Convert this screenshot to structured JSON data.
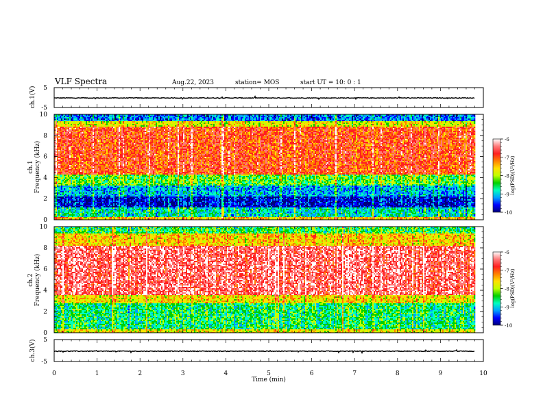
{
  "header": {
    "title": "VLF Spectra",
    "date": "Aug.22, 2023",
    "station": "station= MOS",
    "start": "start  UT =   10: 0  : 1"
  },
  "chart_data": [
    {
      "type": "line",
      "panel": "ch1-voltage",
      "ylabel": "ch.1(V)",
      "ylim": [
        -5,
        5
      ],
      "yticks": [
        "5",
        "-5"
      ],
      "series": [
        {
          "values": [
            -0.2,
            -0.2,
            -0.2,
            -0.2,
            -0.2,
            -0.2,
            -0.2,
            -0.2,
            -0.2,
            -0.2,
            -0.2
          ]
        }
      ],
      "x": [
        0,
        1,
        2,
        3,
        4,
        5,
        6,
        7,
        8,
        9,
        9.8
      ]
    },
    {
      "type": "heatmap",
      "panel": "ch1-spectrogram",
      "ylabel": "Frequency (kHz)",
      "channel_label": "ch.1",
      "ylim": [
        0,
        10
      ],
      "yticks": [
        "0",
        "2",
        "4",
        "6",
        "8",
        "10"
      ],
      "xlim": [
        0,
        9.8
      ],
      "bands": [
        {
          "from": 0,
          "to": 0.3,
          "level": -7.5
        },
        {
          "from": 0.3,
          "to": 1.2,
          "level": -8.8
        },
        {
          "from": 1.2,
          "to": 2.2,
          "level": -9.7
        },
        {
          "from": 2.2,
          "to": 3.2,
          "level": -9.1
        },
        {
          "from": 3.2,
          "to": 4.3,
          "level": -8.3
        },
        {
          "from": 4.3,
          "to": 8.8,
          "level": -6.9
        },
        {
          "from": 8.8,
          "to": 9.4,
          "level": -7.8
        },
        {
          "from": 9.4,
          "to": 10,
          "level": -9.3
        }
      ],
      "colorbar": {
        "label": "log(PSD)(V²/Hz)",
        "ticks": [
          "-6",
          "-7",
          "-8",
          "-9",
          "-10"
        ],
        "range": [
          -10,
          -6
        ]
      }
    },
    {
      "type": "heatmap",
      "panel": "ch2-spectrogram",
      "ylabel": "Frequency (kHz)",
      "channel_label": "ch.2",
      "ylim": [
        0,
        10
      ],
      "yticks": [
        "0",
        "2",
        "4",
        "6",
        "8",
        "10"
      ],
      "xlim": [
        0,
        9.8
      ],
      "bands": [
        {
          "from": 0,
          "to": 0.3,
          "level": -7.8
        },
        {
          "from": 0.3,
          "to": 2.8,
          "level": -8.6
        },
        {
          "from": 2.8,
          "to": 3.5,
          "level": -7.7
        },
        {
          "from": 3.5,
          "to": 8.2,
          "level": -6.5
        },
        {
          "from": 8.2,
          "to": 9.3,
          "level": -7.6
        },
        {
          "from": 9.3,
          "to": 10,
          "level": -8.5
        }
      ],
      "colorbar": {
        "label": "log(PSD)(V²/Hz)",
        "ticks": [
          "-6",
          "-7",
          "-8",
          "-9",
          "-10"
        ],
        "range": [
          -10,
          -6
        ]
      }
    },
    {
      "type": "line",
      "panel": "ch3-voltage",
      "ylabel": "ch.3(V)",
      "ylim": [
        -5,
        5
      ],
      "yticks": [
        "5",
        "-5"
      ],
      "series": [
        {
          "values": [
            -0.3,
            -0.3,
            -0.3,
            -0.3,
            -0.3,
            -0.3,
            -0.3,
            -0.3,
            -0.3,
            -0.3,
            -0.3
          ]
        }
      ],
      "x": [
        0,
        1,
        2,
        3,
        4,
        5,
        6,
        7,
        8,
        9,
        9.8
      ]
    }
  ],
  "xaxis": {
    "label": "Time  (min)",
    "ticks": [
      "0",
      "1",
      "2",
      "3",
      "4",
      "5",
      "6",
      "7",
      "8",
      "9",
      "10"
    ],
    "range": [
      0,
      10
    ]
  },
  "colormap": [
    "#00007a",
    "#0000ff",
    "#00a0ff",
    "#00ffc0",
    "#00d000",
    "#c0ff00",
    "#ffe000",
    "#ff8000",
    "#ff2020",
    "#ff7a7a",
    "#ffffff"
  ]
}
